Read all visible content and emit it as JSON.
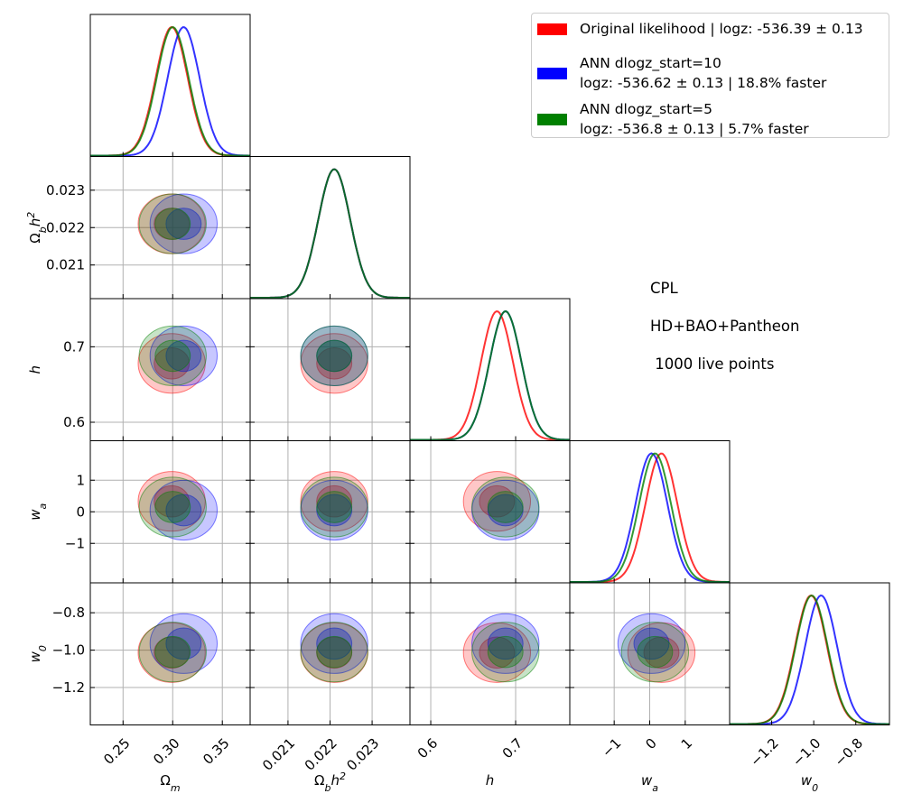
{
  "chart_data": {
    "type": "corner",
    "params": [
      {
        "label": [
          {
            "text": "Ω"
          },
          {
            "text": "m",
            "pos": "sub"
          }
        ],
        "lim": [
          0.217,
          0.378
        ],
        "ticks": [
          0.25,
          {
            "value": 0.3,
            "label": "0.30"
          },
          0.35
        ]
      },
      {
        "label": [
          {
            "text": "Ω"
          },
          {
            "text": "b",
            "pos": "sub"
          },
          {
            "text": "h"
          },
          {
            "text": "2",
            "pos": "sup"
          }
        ],
        "lim": [
          0.0201,
          0.0239
        ],
        "ticks": [
          0.021,
          0.022,
          0.023
        ]
      },
      {
        "label": [
          {
            "text": "h"
          }
        ],
        "lim": [
          0.5755,
          0.7638
        ],
        "ticks": [
          0.6,
          0.7
        ]
      },
      {
        "label": [
          {
            "text": "w"
          },
          {
            "text": "a",
            "pos": "sub"
          }
        ],
        "lim": [
          -2.25,
          2.25
        ],
        "ticks": [
          {
            "value": -1,
            "label": "−1"
          },
          0,
          1
        ]
      },
      {
        "label": [
          {
            "text": "w"
          },
          {
            "text": "0",
            "pos": "sub"
          }
        ],
        "lim": [
          -1.4,
          -0.64
        ],
        "ticks": [
          {
            "value": -1.2,
            "label": "−1.2"
          },
          {
            "value": -1.0,
            "label": "−1.0"
          },
          {
            "value": -0.8,
            "label": "−0.8"
          }
        ]
      }
    ],
    "series": [
      {
        "name": "Original likelihood | logz: -536.39 ± 0.13",
        "color": "#ff0000",
        "values": [
          0.299,
          0.0221,
          0.678,
          0.33,
          -1.013
        ]
      },
      {
        "name": "ANN dlogz_start=10\nlogz: -536.62  ± 0.13 | 18.8% faster",
        "color": "#0000ff",
        "values": [
          0.311,
          0.0221,
          0.688,
          0.05,
          -0.965
        ]
      },
      {
        "name": "ANN dlogz_start=5\nlogz: -536.8  ± 0.13 | 5.7% faster",
        "color": "#008000",
        "values": [
          0.3,
          0.0221,
          0.688,
          0.15,
          -1.01
        ]
      }
    ],
    "annotations": [
      "CPL",
      "HD+BAO+Pantheon",
      " 1000 live points"
    ],
    "grid": true
  }
}
